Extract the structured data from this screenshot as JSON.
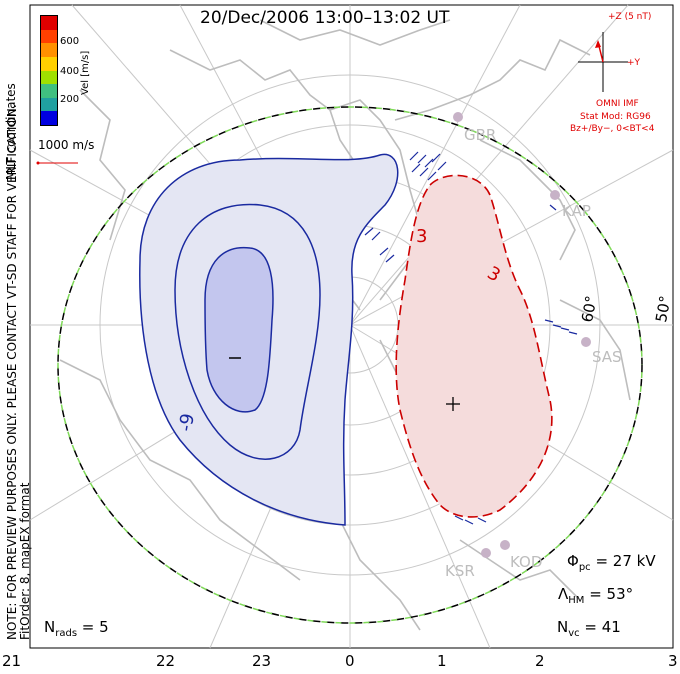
{
  "title": "20/Dec/2006 13:00–13:02 UT",
  "colorbar": {
    "label": "Vel [m/s]",
    "ticks": [
      "600",
      "400",
      "200"
    ],
    "colors": [
      "#e00000",
      "#ff4000",
      "#ff9000",
      "#ffd000",
      "#a0e000",
      "#40c080",
      "#20a0a0",
      "#0000e0"
    ]
  },
  "side_labels": {
    "coords": "MLT coordinates",
    "note": "NOTE: FOR PREVIEW PURPOSES ONLY. PLEASE CONTACT VT-SD STAFF FOR VERIFICATION.",
    "fit": "FitOrder: 8, mapEX format"
  },
  "velocity_scale": "1000 m/s",
  "imf": {
    "z_label": "+Z (5 nT)",
    "y_label": "+Y",
    "source": "OMNI IMF",
    "model": "Stat Mod: RG96",
    "condition": "Bz+/By−, 0<BT<4"
  },
  "latitudes": [
    "60°",
    "50°"
  ],
  "stations": [
    "GBR",
    "KAP",
    "SAS",
    "KSR",
    "KOD"
  ],
  "contours": {
    "minus_sign": "−",
    "plus_sign": "+",
    "neg_label": "-9",
    "pos_label_1": "3",
    "pos_label_2": "3"
  },
  "stats": {
    "phi_pc": "27 kV",
    "lambda_hm": "53°",
    "n_vc": "41",
    "n_rads": "5"
  },
  "mlt_axis": [
    "21",
    "22",
    "23",
    "0",
    "1",
    "2",
    "3"
  ],
  "colors": {
    "neg_fill": "#e4e6f3",
    "neg_inner": "#c3c6ee",
    "neg_line": "#1a2aa0",
    "pos_fill": "#f5dcdc",
    "pos_line": "#cc0000",
    "boundary_green": "#7ed957",
    "land": "#bdbdbd"
  }
}
